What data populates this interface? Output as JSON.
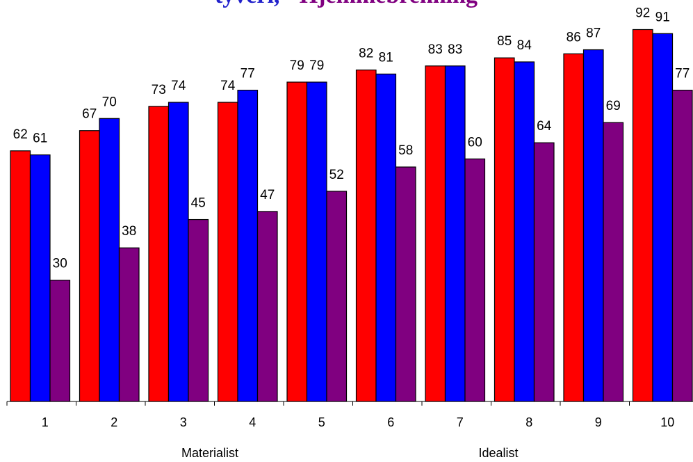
{
  "chart_data": {
    "type": "bar",
    "title_parts": [
      {
        "text": "tyveri,",
        "color": "#2222cc"
      },
      {
        "text": "- Hjemmebrenning",
        "color": "#800080"
      }
    ],
    "categories": [
      "1",
      "2",
      "3",
      "4",
      "5",
      "6",
      "7",
      "8",
      "9",
      "10"
    ],
    "series": [
      {
        "color": "#ff0000",
        "values": [
          62,
          67,
          73,
          74,
          79,
          82,
          83,
          85,
          86,
          92
        ]
      },
      {
        "color": "#0000ff",
        "values": [
          61,
          70,
          74,
          77,
          79,
          81,
          83,
          84,
          87,
          91
        ]
      },
      {
        "color": "#800080",
        "values": [
          30,
          38,
          45,
          47,
          52,
          58,
          60,
          64,
          69,
          77
        ]
      }
    ],
    "ylim": [
      0,
      100
    ],
    "grid": false,
    "legend": "none",
    "xaxis_group_labels": {
      "left": "Materialist",
      "right": "Idealist"
    }
  }
}
